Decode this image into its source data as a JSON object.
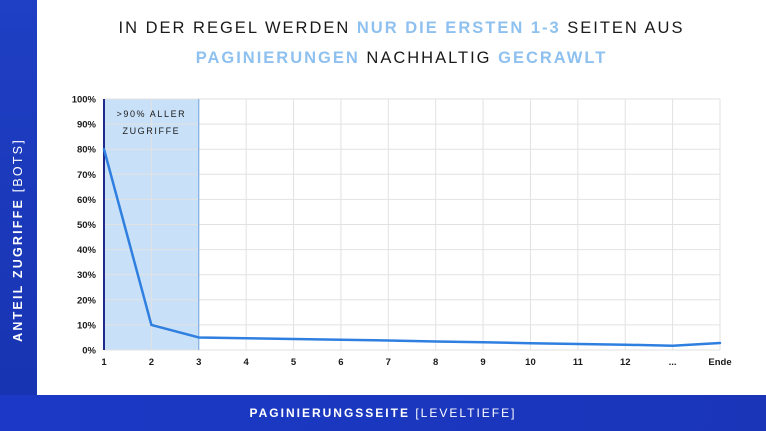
{
  "title": {
    "line1": [
      {
        "text": "In der Regel werden ",
        "highlight": false
      },
      {
        "text": "nur die ersten 1-3",
        "highlight": true
      },
      {
        "text": " Seiten aus",
        "highlight": false
      }
    ],
    "line2": [
      {
        "text": "Paginierungen",
        "highlight": true
      },
      {
        "text": " nachhaltig ",
        "highlight": false
      },
      {
        "text": "gecrawlt",
        "highlight": true
      }
    ]
  },
  "axes": {
    "ylabel_bold": "ANTEIL ZUGRIFFE",
    "ylabel_rest": " [BOTS]",
    "xlabel_bold": "PAGINIERUNGSSEITE",
    "xlabel_rest": " [LEVELTIEFE]"
  },
  "colors": {
    "band": "#1b3bc2",
    "line": "#2f7fe0",
    "highlight_area": "#c8e0f8",
    "highlight_border": "#1e2a8c",
    "title_accent": "#8ec1ef"
  },
  "chart_data": {
    "type": "line",
    "categories": [
      "1",
      "2",
      "3",
      "4",
      "5",
      "6",
      "7",
      "8",
      "9",
      "10",
      "11",
      "12",
      "...",
      "Ende"
    ],
    "series": [
      {
        "values": [
          80,
          10,
          5,
          4.7,
          4.4,
          4.1,
          3.8,
          3.4,
          3.1,
          2.7,
          2.4,
          2.1,
          1.7,
          2.8
        ]
      }
    ],
    "ylim": [
      0,
      100
    ],
    "yticks": [
      "0%",
      "10%",
      "20%",
      "30%",
      "40%",
      "50%",
      "60%",
      "70%",
      "80%",
      "90%",
      "100%"
    ],
    "grid": true,
    "highlight_range": {
      "from": "1",
      "to": "3",
      "label_line1": ">90% aller",
      "label_line2": "Zugriffe"
    }
  }
}
